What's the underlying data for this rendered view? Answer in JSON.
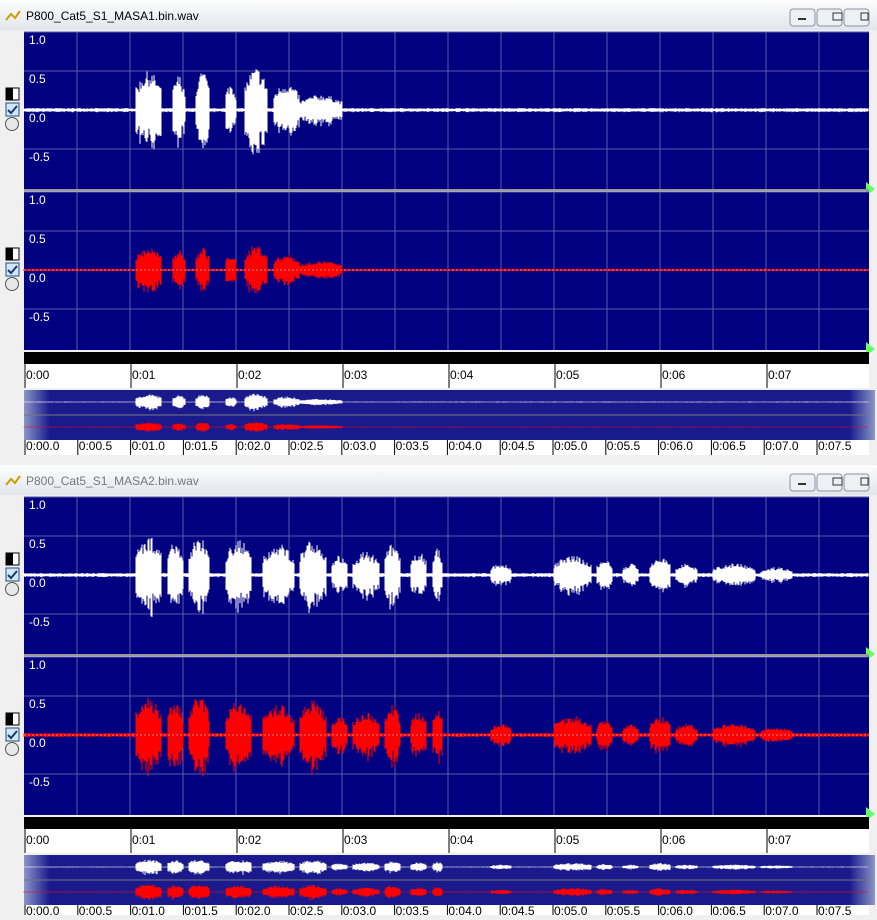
{
  "windows": [
    {
      "title": "P800_Cat5_S1_MASA1.bin.wav",
      "channels": [
        {
          "amp_labels": [
            "1.0",
            "0.5",
            "0.0",
            "-0.5"
          ]
        },
        {
          "amp_labels": [
            "1.0",
            "0.5",
            "0.0",
            "-0.5"
          ]
        }
      ],
      "time_labels": [
        "0:00",
        "0:01",
        "0:02",
        "0:03",
        "0:04",
        "0:05",
        "0:06",
        "0:07"
      ],
      "overview_labels": [
        "0:00.0",
        "0:00.5",
        "0:01.0",
        "0:01.5",
        "0:02.0",
        "0:02.5",
        "0:03.0",
        "0:03.5",
        "0:04.0",
        "0:04.5",
        "0:05.0",
        "0:05.5",
        "0:06.0",
        "0:06.5",
        "0:07.0",
        "0:07.5"
      ]
    },
    {
      "title": "P800_Cat5_S1_MASA2.bin.wav",
      "channels": [
        {
          "amp_labels": [
            "1.0",
            "0.5",
            "0.0",
            "-0.5"
          ]
        },
        {
          "amp_labels": [
            "1.0",
            "0.5",
            "0.0",
            "-0.5"
          ]
        }
      ],
      "time_labels": [
        "0:00",
        "0:01",
        "0:02",
        "0:03",
        "0:04",
        "0:05",
        "0:06",
        "0:07"
      ],
      "overview_labels": [
        "0:00.0",
        "0:00.5",
        "0:01.0",
        "0:01.5",
        "0:02.0",
        "0:02.5",
        "0:03.0",
        "0:03.5",
        "0:04.0",
        "0:04.5",
        "0:05.0",
        "0:05.5",
        "0:06.0",
        "0:06.5",
        "0:07.0",
        "0:07.5"
      ]
    }
  ]
}
